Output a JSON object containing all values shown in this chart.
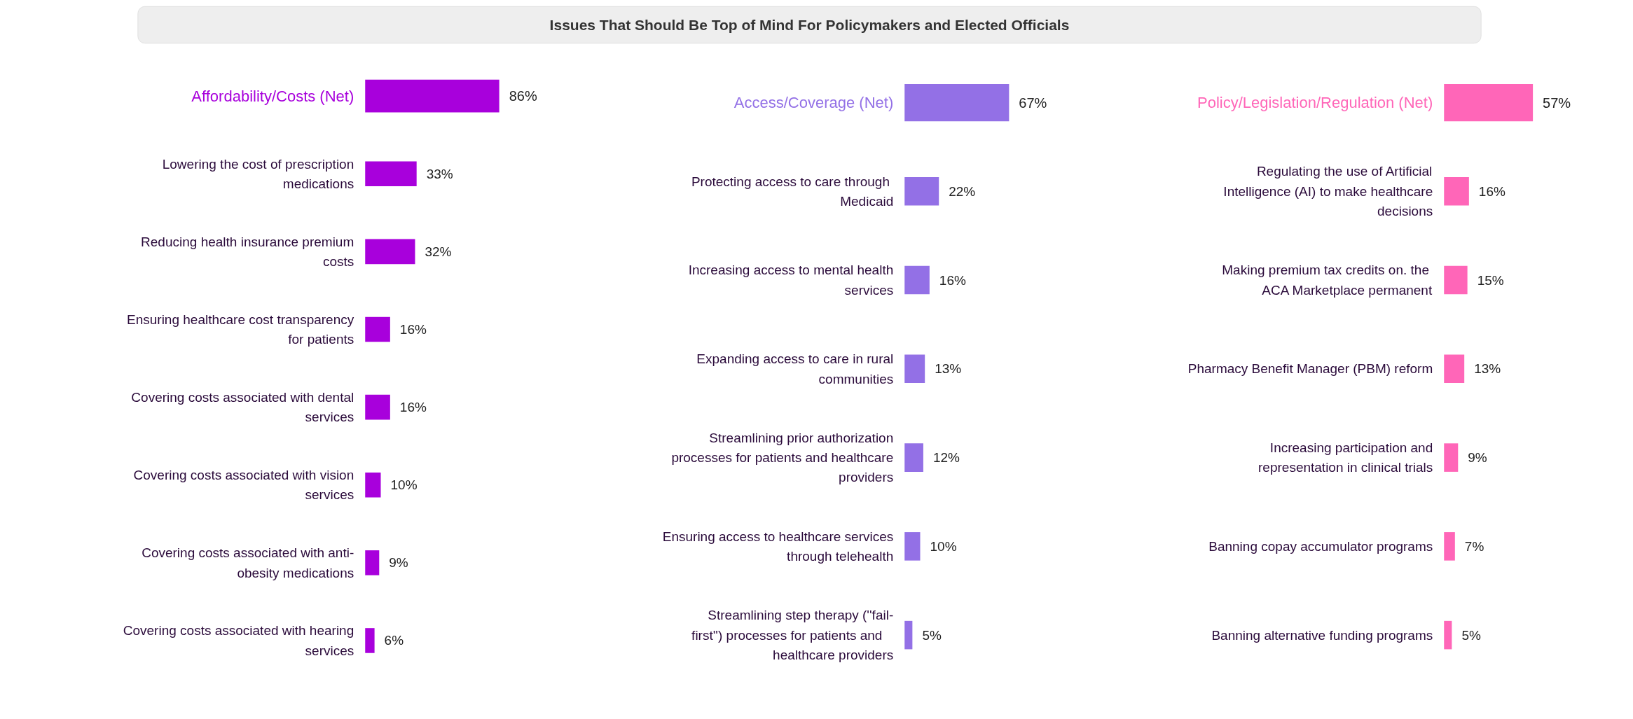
{
  "chart_data": [
    {
      "type": "other",
      "title": "Issues That Should Be Top of Mind For Policymakers and Elected Officials"
    },
    {
      "type": "bar",
      "orientation": "horizontal",
      "color": "#a800dc",
      "value_labels": [
        "86%",
        "33%",
        "32%",
        "16%",
        "16%",
        "10%",
        "9%",
        "6%"
      ],
      "categories": [
        "Affordability/Costs (Net)",
        "Lowering the cost of prescription medications",
        "Reducing health insurance premium costs",
        "Ensuring healthcare cost transparency for patients",
        "Covering costs associated with dental services",
        "Covering costs associated with vision services",
        "Covering costs associated with anti-obesity medications",
        "Covering costs associated with hearing services"
      ],
      "values": [
        86,
        33,
        32,
        16,
        16,
        10,
        9,
        6
      ]
    },
    {
      "type": "bar",
      "orientation": "horizontal",
      "color": "#9370e6",
      "value_labels": [
        "67%",
        "22%",
        "16%",
        "13%",
        "12%",
        "10%",
        "5%"
      ],
      "categories": [
        "Access/Coverage (Net)",
        "Protecting access to care  through Medicaid",
        "Increasing access to mental health services",
        "Expanding access to care in rural communities",
        "Streamlining prior authorization processes for patients and healthcare providers",
        "Ensuring access to healthcare services through telehealth",
        "Streamlining step therapy (''fail-first'') processes for patients    and healthcare providers"
      ],
      "values": [
        67,
        22,
        16,
        13,
        12,
        10,
        5
      ]
    },
    {
      "type": "bar",
      "orientation": "horizontal",
      "color": "#ff66b8",
      "value_labels": [
        "57%",
        "16%",
        "15%",
        "13%",
        "9%",
        "7%",
        "5%"
      ],
      "categories": [
        "Policy/Legislation/Regulation (Net)",
        "Regulating the use of Artificial Intelligence (AI) to make healthcare decisions",
        "Making premium tax credits on.  the ACA Marketplace permanent",
        "Pharmacy Benefit Manager (PBM) reform",
        "Increasing participation and representation in clinical trials",
        "Banning copay accumulator programs",
        "Banning alternative funding programs"
      ],
      "values": [
        57,
        16,
        15,
        13,
        9,
        7,
        5
      ]
    }
  ]
}
